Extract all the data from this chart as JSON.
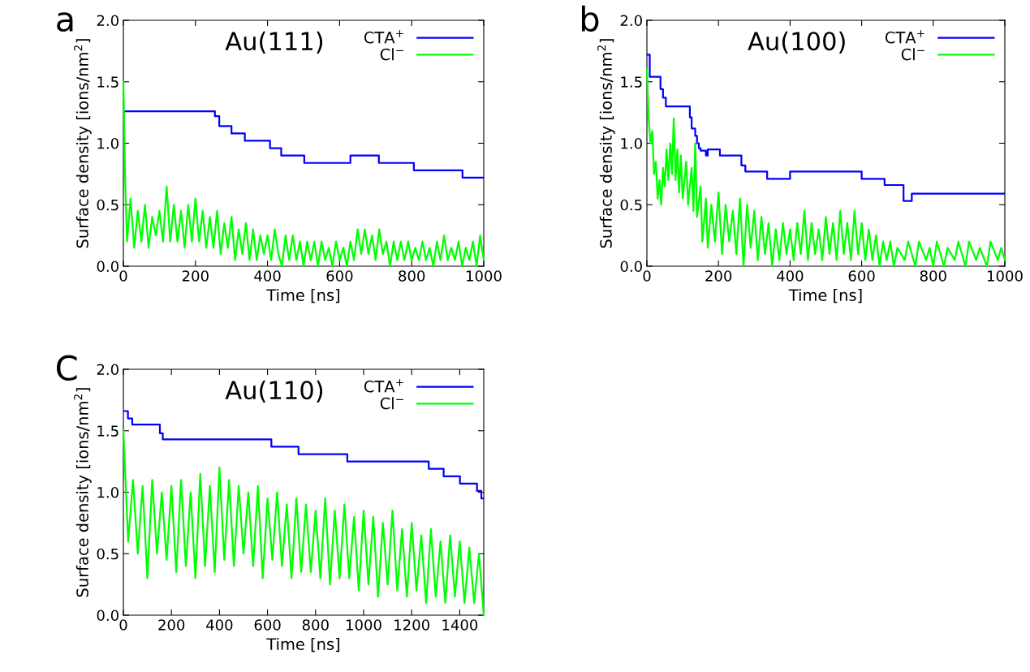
{
  "chart_data": [
    {
      "type": "line",
      "title": "Au(111)",
      "xlabel": "Time [ns]",
      "ylabel": "Surface density [ions/nm$^{2}$]",
      "annotations": [
        "a"
      ],
      "xlim": [
        0,
        1000
      ],
      "xticks": [
        0,
        200,
        400,
        600,
        800,
        1000
      ],
      "ylim": [
        0,
        2.0
      ],
      "yticks": [
        {
          "value": 0,
          "label": "0.0"
        },
        {
          "value": 0.5,
          "label": "0.5"
        },
        {
          "value": 1.0,
          "label": "1.0"
        },
        {
          "value": 1.5,
          "label": "1.5"
        },
        {
          "value": 2.0,
          "label": "2.0"
        }
      ],
      "legend": "top right",
      "grid": false,
      "series": [
        {
          "name": "CTA$^{+}$",
          "type": "step",
          "color": "#0000ff",
          "x": [
            0,
            254,
            266,
            300,
            337,
            407,
            438,
            502,
            630,
            709,
            806,
            941,
            1000
          ],
          "values": [
            1.26,
            1.22,
            1.14,
            1.08,
            1.02,
            0.96,
            0.9,
            0.84,
            0.9,
            0.84,
            0.78,
            0.72,
            0.72
          ]
        },
        {
          "name": "Cl$^{−}$",
          "color": "#00ff00",
          "x": [
            0,
            5,
            10,
            20,
            30,
            40,
            50,
            60,
            70,
            80,
            90,
            100,
            110,
            120,
            130,
            140,
            150,
            160,
            170,
            180,
            190,
            200,
            210,
            220,
            230,
            240,
            250,
            260,
            270,
            280,
            290,
            300,
            310,
            320,
            330,
            340,
            350,
            360,
            370,
            380,
            390,
            400,
            410,
            420,
            430,
            440,
            450,
            460,
            470,
            480,
            490,
            500,
            510,
            520,
            530,
            540,
            550,
            560,
            570,
            580,
            590,
            600,
            610,
            620,
            630,
            640,
            650,
            660,
            670,
            680,
            690,
            700,
            710,
            720,
            730,
            740,
            750,
            760,
            770,
            780,
            790,
            800,
            810,
            820,
            830,
            840,
            850,
            860,
            870,
            880,
            890,
            900,
            910,
            920,
            930,
            940,
            950,
            960,
            970,
            980,
            990,
            1000
          ],
          "values": [
            1.5,
            0.7,
            0.2,
            0.55,
            0.15,
            0.45,
            0.2,
            0.5,
            0.15,
            0.4,
            0.25,
            0.45,
            0.2,
            0.65,
            0.2,
            0.5,
            0.2,
            0.45,
            0.15,
            0.5,
            0.2,
            0.55,
            0.2,
            0.45,
            0.15,
            0.4,
            0.15,
            0.45,
            0.1,
            0.35,
            0.15,
            0.4,
            0.05,
            0.3,
            0.1,
            0.35,
            0.05,
            0.3,
            0.05,
            0.25,
            0.1,
            0.25,
            0.05,
            0.3,
            0.1,
            0.0,
            0.25,
            0.05,
            0.25,
            0.05,
            0.2,
            0.0,
            0.2,
            0.05,
            0.2,
            0.0,
            0.2,
            0.05,
            0.15,
            0.0,
            0.2,
            0.05,
            0.15,
            0.0,
            0.2,
            0.05,
            0.3,
            0.1,
            0.3,
            0.1,
            0.25,
            0.05,
            0.3,
            0.1,
            0.2,
            0.0,
            0.2,
            0.05,
            0.2,
            0.05,
            0.2,
            0.05,
            0.15,
            0.05,
            0.2,
            0.05,
            0.15,
            0.0,
            0.2,
            0.05,
            0.25,
            0.05,
            0.15,
            0.05,
            0.2,
            0.0,
            0.15,
            0.05,
            0.2,
            0.0,
            0.25,
            0.05
          ]
        }
      ]
    },
    {
      "type": "line",
      "title": "Au(100)",
      "xlabel": "Time [ns]",
      "ylabel": "Surface density [ions/nm$^{2}$]",
      "annotations": [
        "b"
      ],
      "xlim": [
        0,
        1000
      ],
      "xticks": [
        0,
        200,
        400,
        600,
        800,
        1000
      ],
      "ylim": [
        0,
        2.0
      ],
      "yticks": [
        {
          "value": 0,
          "label": "0.0"
        },
        {
          "value": 0.5,
          "label": "0.5"
        },
        {
          "value": 1.0,
          "label": "1.0"
        },
        {
          "value": 1.5,
          "label": "1.5"
        },
        {
          "value": 2.0,
          "label": "2.0"
        }
      ],
      "legend": "top right",
      "grid": false,
      "series": [
        {
          "name": "CTA$^{+}$",
          "type": "step",
          "color": "#0000ff",
          "x": [
            0,
            8,
            38,
            45,
            53,
            120,
            125,
            135,
            140,
            145,
            150,
            165,
            170,
            204,
            264,
            275,
            336,
            400,
            434,
            600,
            664,
            717,
            740,
            1000
          ],
          "values": [
            1.72,
            1.54,
            1.44,
            1.37,
            1.3,
            1.21,
            1.12,
            1.06,
            1.0,
            0.96,
            0.94,
            0.9,
            0.95,
            0.9,
            0.82,
            0.77,
            0.71,
            0.77,
            0.77,
            0.71,
            0.66,
            0.53,
            0.59,
            0.59
          ]
        },
        {
          "name": "Cl$^{−}$",
          "color": "#00ff00",
          "x": [
            0,
            5,
            10,
            15,
            20,
            25,
            30,
            35,
            40,
            45,
            50,
            55,
            60,
            65,
            70,
            75,
            80,
            85,
            90,
            95,
            100,
            110,
            115,
            125,
            130,
            135,
            140,
            150,
            155,
            165,
            170,
            180,
            190,
            200,
            210,
            220,
            230,
            240,
            250,
            260,
            270,
            280,
            290,
            300,
            310,
            320,
            330,
            340,
            350,
            360,
            370,
            380,
            390,
            400,
            410,
            420,
            430,
            440,
            450,
            460,
            470,
            480,
            490,
            500,
            510,
            520,
            530,
            540,
            550,
            560,
            570,
            580,
            590,
            600,
            610,
            620,
            630,
            640,
            650,
            660,
            670,
            680,
            690,
            700,
            720,
            730,
            750,
            760,
            780,
            790,
            800,
            810,
            830,
            840,
            860,
            870,
            890,
            900,
            920,
            930,
            950,
            960,
            980,
            990,
            1000
          ],
          "values": [
            1.6,
            1.2,
            1.0,
            1.1,
            0.75,
            0.85,
            0.55,
            0.7,
            0.5,
            0.8,
            0.65,
            0.95,
            0.7,
            1.0,
            0.75,
            1.2,
            0.7,
            0.95,
            0.6,
            0.9,
            0.55,
            0.85,
            0.5,
            0.8,
            0.45,
            1.0,
            0.4,
            0.65,
            0.2,
            0.55,
            0.15,
            0.5,
            0.2,
            0.6,
            0.1,
            0.5,
            0.2,
            0.45,
            0.1,
            0.55,
            0.0,
            0.5,
            0.15,
            0.45,
            0.05,
            0.4,
            0.1,
            0.35,
            0.0,
            0.3,
            0.05,
            0.35,
            0.1,
            0.3,
            0.05,
            0.35,
            0.1,
            0.45,
            0.05,
            0.35,
            0.1,
            0.3,
            0.05,
            0.4,
            0.1,
            0.35,
            0.05,
            0.45,
            0.1,
            0.35,
            0.05,
            0.45,
            0.1,
            0.35,
            0.05,
            0.3,
            0.05,
            0.25,
            0.0,
            0.2,
            0.05,
            0.2,
            0.0,
            0.15,
            0.05,
            0.2,
            0.0,
            0.2,
            0.05,
            0.15,
            0.0,
            0.2,
            0.0,
            0.15,
            0.05,
            0.2,
            0.0,
            0.2,
            0.05,
            0.15,
            0.0,
            0.2,
            0.05,
            0.15,
            0.05
          ]
        }
      ]
    },
    {
      "type": "line",
      "title": "Au(110)",
      "xlabel": "Time [ns]",
      "ylabel": "Surface density [ions/nm$^{2}$]",
      "annotations": [
        "C"
      ],
      "xlim": [
        0,
        1500
      ],
      "xticks": [
        0,
        200,
        400,
        600,
        800,
        1000,
        1200,
        1400
      ],
      "ylim": [
        0,
        2.0
      ],
      "yticks": [
        {
          "value": 0,
          "label": "0.0"
        },
        {
          "value": 0.5,
          "label": "0.5"
        },
        {
          "value": 1.0,
          "label": "1.0"
        },
        {
          "value": 1.5,
          "label": "1.5"
        },
        {
          "value": 2.0,
          "label": "2.0"
        }
      ],
      "legend": "top right",
      "grid": false,
      "series": [
        {
          "name": "CTA$^{+}$",
          "type": "step",
          "color": "#0000ff",
          "x": [
            0,
            19,
            37,
            152,
            164,
            616,
            729,
            932,
            1271,
            1333,
            1401,
            1472,
            1490,
            1500
          ],
          "values": [
            1.66,
            1.6,
            1.55,
            1.48,
            1.43,
            1.37,
            1.31,
            1.25,
            1.19,
            1.13,
            1.07,
            1.01,
            0.95,
            0.95
          ]
        },
        {
          "name": "Cl$^{−}$",
          "color": "#00ff00",
          "x": [
            0,
            20,
            40,
            60,
            80,
            100,
            120,
            140,
            160,
            180,
            200,
            220,
            240,
            260,
            280,
            300,
            320,
            340,
            360,
            380,
            400,
            420,
            440,
            460,
            480,
            500,
            520,
            540,
            560,
            580,
            600,
            620,
            640,
            660,
            680,
            700,
            720,
            740,
            760,
            780,
            800,
            820,
            840,
            860,
            880,
            900,
            920,
            940,
            960,
            980,
            1000,
            1020,
            1040,
            1060,
            1080,
            1100,
            1120,
            1140,
            1160,
            1180,
            1200,
            1220,
            1240,
            1260,
            1280,
            1300,
            1320,
            1340,
            1360,
            1380,
            1400,
            1420,
            1440,
            1460,
            1480,
            1500
          ],
          "values": [
            1.5,
            0.6,
            1.1,
            0.5,
            1.05,
            0.3,
            1.1,
            0.5,
            1.0,
            0.45,
            1.05,
            0.35,
            1.1,
            0.4,
            1.0,
            0.3,
            1.15,
            0.4,
            1.05,
            0.35,
            1.2,
            0.45,
            1.1,
            0.4,
            1.05,
            0.5,
            1.0,
            0.4,
            1.05,
            0.3,
            0.95,
            0.45,
            1.0,
            0.4,
            0.9,
            0.3,
            0.95,
            0.35,
            0.9,
            0.35,
            0.85,
            0.3,
            0.95,
            0.25,
            0.85,
            0.3,
            0.9,
            0.3,
            0.8,
            0.2,
            0.85,
            0.25,
            0.8,
            0.15,
            0.75,
            0.25,
            0.85,
            0.2,
            0.7,
            0.15,
            0.75,
            0.2,
            0.65,
            0.1,
            0.7,
            0.15,
            0.6,
            0.1,
            0.65,
            0.15,
            0.6,
            0.1,
            0.55,
            0.1,
            0.5,
            0.0
          ]
        }
      ]
    }
  ]
}
